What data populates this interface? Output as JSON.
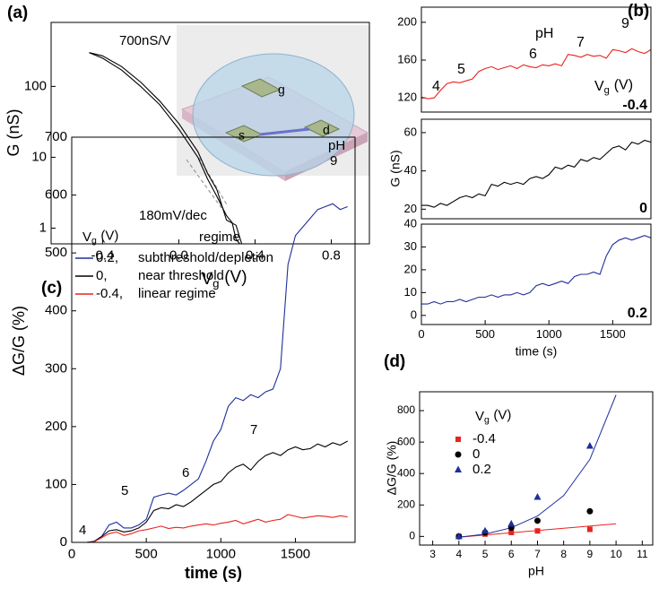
{
  "chart_data": [
    {
      "type": "line",
      "panel": "(a)",
      "ylog": true,
      "xlabel": {
        "symbol": "V",
        "subscript": "g",
        "unit": "(V)"
      },
      "ylabel": "G (nS)",
      "annotations": [
        "700nS/V",
        "180mV/dec"
      ],
      "inset_labels": [
        "g",
        "s",
        "d"
      ],
      "xlim": [
        -0.67,
        1.0
      ],
      "ylim": [
        0.6,
        800
      ],
      "xticks": [
        -0.4,
        {
          "value": 0,
          "label": "0.0"
        },
        0.4,
        0.8
      ],
      "yticks": [
        1,
        10,
        100
      ],
      "series": [
        {
          "color": "#000000",
          "x": [
            -0.47,
            -0.4,
            -0.3,
            -0.2,
            -0.1,
            0.0,
            0.1,
            0.15,
            0.2,
            0.25,
            0.28,
            0.3,
            0.32,
            0.5
          ],
          "values": [
            300,
            250,
            170,
            100,
            55,
            25,
            10,
            5,
            2.8,
            1.5,
            1.2,
            0.7,
            0.6,
            0.6
          ]
        },
        {
          "color": "#000000",
          "x": [
            -0.47,
            -0.4,
            -0.3,
            -0.2,
            -0.1,
            0.0,
            0.1,
            0.15,
            0.2,
            0.25,
            0.3,
            0.33,
            0.52
          ],
          "values": [
            300,
            270,
            190,
            115,
            62,
            30,
            12,
            6,
            3.5,
            1.3,
            1.1,
            0.6,
            0.6
          ]
        }
      ]
    },
    {
      "type": "line",
      "panel": "(b)",
      "ph_title": "pH",
      "ph_labels": [
        4,
        5,
        6,
        7,
        9
      ],
      "vg_label": {
        "symbol": "V",
        "subscript": "g",
        "unit": "(V)"
      },
      "vg": -0.4,
      "xlim": [
        0,
        1800
      ],
      "ylim": [
        105,
        216
      ],
      "yticks": [
        120,
        160,
        200
      ],
      "x": [
        0,
        50,
        100,
        150,
        200,
        250,
        300,
        350,
        400,
        450,
        500,
        550,
        600,
        650,
        700,
        750,
        800,
        850,
        900,
        950,
        1000,
        1050,
        1100,
        1150,
        1200,
        1250,
        1300,
        1350,
        1400,
        1450,
        1500,
        1550,
        1600,
        1650,
        1700,
        1750,
        1800,
        1850
      ],
      "series": [
        {
          "color": "#e8231f",
          "values": [
            121,
            119,
            120,
            128,
            135,
            137,
            136,
            138,
            140,
            148,
            151,
            153,
            150,
            152,
            154,
            151,
            155,
            153,
            152,
            155,
            154,
            156,
            154,
            166,
            165,
            163,
            166,
            164,
            165,
            162,
            171,
            170,
            168,
            172,
            169,
            167,
            171,
            173
          ]
        }
      ]
    },
    {
      "type": "line",
      "ylabel": "G (nS)",
      "vg": 0,
      "xlim": [
        0,
        1800
      ],
      "ylim": [
        15,
        67
      ],
      "yticks": [
        20,
        40,
        60
      ],
      "x": [
        0,
        50,
        100,
        150,
        200,
        250,
        300,
        350,
        400,
        450,
        500,
        550,
        600,
        650,
        700,
        750,
        800,
        850,
        900,
        950,
        1000,
        1050,
        1100,
        1150,
        1200,
        1250,
        1300,
        1350,
        1400,
        1450,
        1500,
        1550,
        1600,
        1650,
        1700,
        1750,
        1800,
        1850
      ],
      "series": [
        {
          "color": "#000000",
          "values": [
            22,
            22,
            21,
            23,
            22,
            24,
            26,
            27,
            26,
            28,
            27,
            33,
            32,
            34,
            33,
            34,
            33,
            36,
            37,
            36,
            38,
            42,
            41,
            43,
            42,
            46,
            45,
            47,
            46,
            49,
            52,
            53,
            51,
            55,
            54,
            56,
            55,
            56
          ]
        }
      ]
    },
    {
      "type": "line",
      "xlabel": "time (s)",
      "vg": 0.2,
      "xlim": [
        0,
        1800
      ],
      "ylim": [
        -4,
        40
      ],
      "yticks": [
        0,
        10,
        20,
        30,
        40
      ],
      "xticks": [
        0,
        500,
        1000,
        1500
      ],
      "x": [
        0,
        50,
        100,
        150,
        200,
        250,
        300,
        350,
        400,
        450,
        500,
        550,
        600,
        650,
        700,
        750,
        800,
        850,
        900,
        950,
        1000,
        1050,
        1100,
        1150,
        1200,
        1250,
        1300,
        1350,
        1400,
        1450,
        1500,
        1550,
        1600,
        1650,
        1700,
        1750,
        1800,
        1850
      ],
      "series": [
        {
          "color": "#1f2f9a",
          "values": [
            5,
            5,
            6,
            5,
            6,
            6,
            7,
            6,
            7,
            8,
            8,
            9,
            8,
            9,
            9,
            10,
            9,
            10,
            13,
            14,
            13,
            14,
            15,
            14,
            17,
            18,
            18,
            19,
            18,
            26,
            31,
            33,
            34,
            33,
            34,
            35,
            34,
            33
          ]
        }
      ]
    },
    {
      "type": "line",
      "panel": "(c)",
      "xlabel": "time (s)",
      "ylabel": "ΔG/G (%)",
      "ph_title": "pH",
      "ph_labels": [
        4,
        5,
        6,
        7,
        9
      ],
      "legend_title": {
        "symbol": "V",
        "subscript": "g",
        "unit": "(V)"
      },
      "legend_column": "regime",
      "xlim": [
        0,
        1900
      ],
      "ylim": [
        0,
        700
      ],
      "xticks": [
        0,
        500,
        1000,
        1500
      ],
      "yticks": [
        0,
        100,
        200,
        300,
        400,
        500,
        600,
        700
      ],
      "x": [
        0,
        50,
        100,
        150,
        200,
        250,
        300,
        350,
        400,
        450,
        500,
        550,
        600,
        650,
        700,
        750,
        800,
        850,
        900,
        950,
        1000,
        1050,
        1100,
        1150,
        1200,
        1250,
        1300,
        1350,
        1400,
        1450,
        1500,
        1550,
        1600,
        1650,
        1700,
        1750,
        1800,
        1850
      ],
      "series": [
        {
          "name": "0.2,",
          "regime": "subthreshold/depletion",
          "color": "#1f2f9a",
          "values": [
            0,
            0,
            0,
            2,
            10,
            30,
            35,
            25,
            25,
            30,
            40,
            78,
            82,
            85,
            82,
            90,
            100,
            110,
            140,
            175,
            195,
            235,
            250,
            245,
            255,
            250,
            260,
            265,
            300,
            480,
            530,
            545,
            560,
            575,
            580,
            585,
            575,
            580
          ]
        },
        {
          "name": "0,",
          "regime": "near threshold",
          "color": "#000000",
          "values": [
            0,
            0,
            0,
            1,
            10,
            20,
            22,
            18,
            20,
            25,
            35,
            55,
            60,
            58,
            65,
            62,
            70,
            80,
            90,
            100,
            105,
            120,
            130,
            135,
            125,
            140,
            150,
            155,
            150,
            160,
            165,
            160,
            162,
            170,
            165,
            172,
            168,
            175
          ]
        },
        {
          "name": "-0.4,",
          "regime": "linear regime",
          "color": "#e8231f",
          "values": [
            0,
            0,
            0,
            1,
            8,
            15,
            18,
            12,
            15,
            20,
            22,
            25,
            28,
            24,
            26,
            25,
            28,
            30,
            32,
            30,
            33,
            35,
            38,
            32,
            36,
            40,
            35,
            38,
            40,
            48,
            45,
            42,
            44,
            46,
            45,
            43,
            46,
            44
          ]
        }
      ]
    },
    {
      "type": "scatter",
      "panel": "(d)",
      "xlabel": "pH",
      "ylabel": "ΔG/G (%)",
      "legend_title": {
        "symbol": "V",
        "subscript": "g",
        "unit": "(V)"
      },
      "xlim": [
        2.5,
        11.4
      ],
      "ylim": [
        -55,
        920
      ],
      "xticks": [
        3,
        4,
        5,
        6,
        7,
        8,
        9,
        10,
        11
      ],
      "yticks": [
        0,
        200,
        400,
        600,
        800
      ],
      "x": [
        4,
        5,
        6,
        7,
        9
      ],
      "series": [
        {
          "name": "-0.4",
          "color": "#e8231f",
          "marker": "square",
          "values": [
            0,
            15,
            25,
            35,
            45
          ]
        },
        {
          "name": "0",
          "color": "#000000",
          "marker": "circle",
          "values": [
            0,
            25,
            55,
            100,
            160
          ]
        },
        {
          "name": "0.2",
          "color": "#1f2f9a",
          "marker": "triangle",
          "values": [
            0,
            35,
            80,
            250,
            575
          ]
        }
      ],
      "fits": [
        {
          "color": "#e8231f",
          "x": [
            4,
            10
          ],
          "values": [
            -5,
            80
          ]
        },
        {
          "color": "#1f2f9a",
          "x": [
            4,
            5,
            6,
            7,
            8,
            9,
            10
          ],
          "values": [
            -5,
            15,
            55,
            130,
            260,
            490,
            900
          ]
        }
      ]
    }
  ]
}
